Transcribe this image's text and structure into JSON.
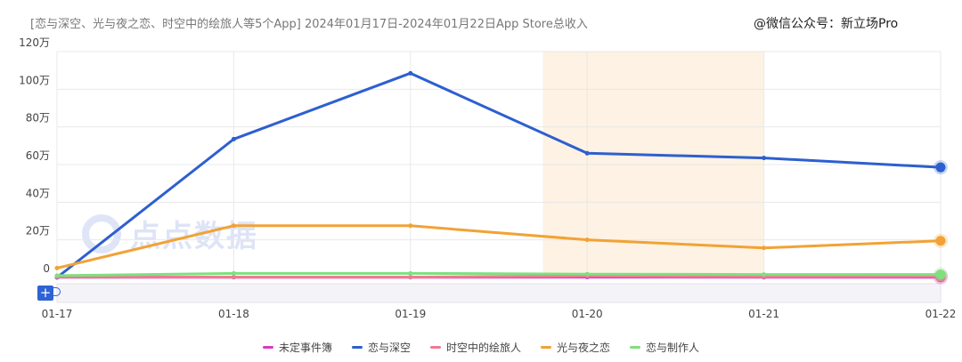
{
  "header": {
    "title": "[恋与深空、光与夜之恋、时空中的绘旅人等5个App]  2024年01月17日-2024年01月22日App Store总收入",
    "watermark": "@微信公众号：新立场Pro"
  },
  "logo": {
    "text": "点点数据",
    "icon": "diandian-logo-icon"
  },
  "colors": {
    "highlight_band": "#fdf2e3",
    "grid": "#e8e8e8"
  },
  "chart_data": {
    "type": "line",
    "title": "",
    "xlabel": "",
    "ylabel": "",
    "x": [
      "01-17",
      "01-18",
      "01-19",
      "01-20",
      "01-21",
      "01-22"
    ],
    "ylim": [
      0,
      1200000
    ],
    "yticks": [
      0,
      200000,
      400000,
      600000,
      800000,
      1000000,
      1200000
    ],
    "ytick_labels": [
      "0",
      "20万",
      "40万",
      "60万",
      "80万",
      "100万",
      "120万"
    ],
    "grid": true,
    "legend_position": "bottom",
    "highlight_range": [
      "01-20",
      "01-21"
    ],
    "series": [
      {
        "name": "未定事件簿",
        "color": "#d63ac7",
        "values": [
          1000,
          1000,
          1000,
          2000,
          1000,
          1000
        ]
      },
      {
        "name": "恋与深空",
        "color": "#2d5fd0",
        "values": [
          0,
          735000,
          1085000,
          660000,
          635000,
          585000
        ]
      },
      {
        "name": "时空中的绘旅人",
        "color": "#ef7a92",
        "values": [
          3000,
          2000,
          2000,
          8000,
          4000,
          6000
        ]
      },
      {
        "name": "光与夜之恋",
        "color": "#f2a235",
        "values": [
          50000,
          275000,
          275000,
          200000,
          157000,
          195000
        ]
      },
      {
        "name": "恋与制作人",
        "color": "#7ee07e",
        "values": [
          10000,
          22000,
          22000,
          18000,
          16000,
          16000
        ]
      }
    ]
  }
}
